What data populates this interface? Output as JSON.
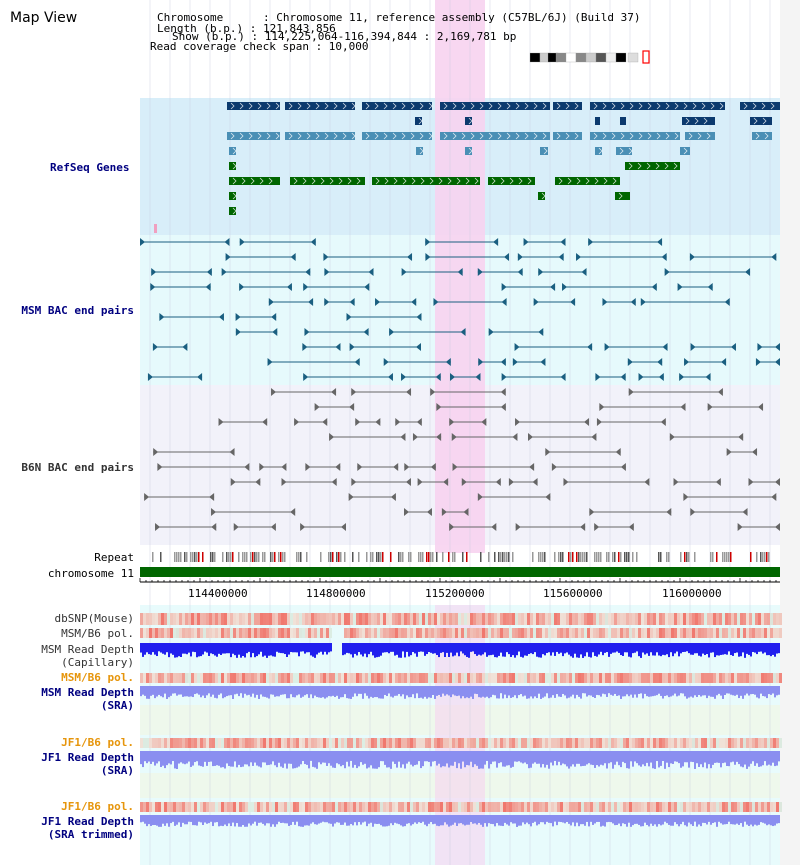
{
  "window_title": "Map View",
  "info": {
    "chromosome_line": "Chromosome      : Chromosome 11, reference assembly (C57BL/6J) (Build 37)",
    "length_line": "Length (b.p.) : 121,843,856",
    "show_line": "Show (b.p.) : 114,225,064-116,394,844 : 2,169,781 bp",
    "span_line": "Read coverage check span : 10,000"
  },
  "tracks": {
    "refseq": "RefSeq Genes",
    "msm_bac": "MSM BAC end pairs",
    "b6n_bac": "B6N BAC end pairs",
    "repeat": "Repeat",
    "chromosome": "chromosome 11",
    "dbsnp": "dbSNP(Mouse)",
    "msm_b6_pol_1": "MSM/B6 pol.",
    "msm_depth_cap_1": "MSM Read Depth",
    "msm_depth_cap_2": "(Capillary)",
    "msm_b6_pol_2": "MSM/B6 pol.",
    "msm_depth_sra_1": "MSM Read Depth",
    "msm_depth_sra_2": "(SRA)",
    "jf1_b6_pol_1": "JF1/B6 pol.",
    "jf1_depth_sra_1": "JF1 Read Depth",
    "jf1_depth_sra_2": "(SRA)",
    "jf1_b6_pol_2": "JF1/B6 pol.",
    "jf1_depth_trim_1": "JF1 Read Depth",
    "jf1_depth_trim_2": "(SRA trimmed)"
  },
  "axis": {
    "ticks": [
      "114400000",
      "114800000",
      "115200000",
      "115600000",
      "116000000"
    ]
  },
  "colors": {
    "refseq_bg": "#d8eef9",
    "msm_bg": "#e6fafc",
    "b6n_bg": "#f2f2fa",
    "highlight": "#f7d3f0",
    "gene_dark": "#0c3a6e",
    "gene_mid": "#4a8fb5",
    "gene_green": "#006600",
    "msm_pair": "#1a5f80",
    "b6n_pair": "#666666",
    "chromosome_bar": "#006600",
    "label_blue": "#000080",
    "label_orange": "#e6950b"
  }
}
